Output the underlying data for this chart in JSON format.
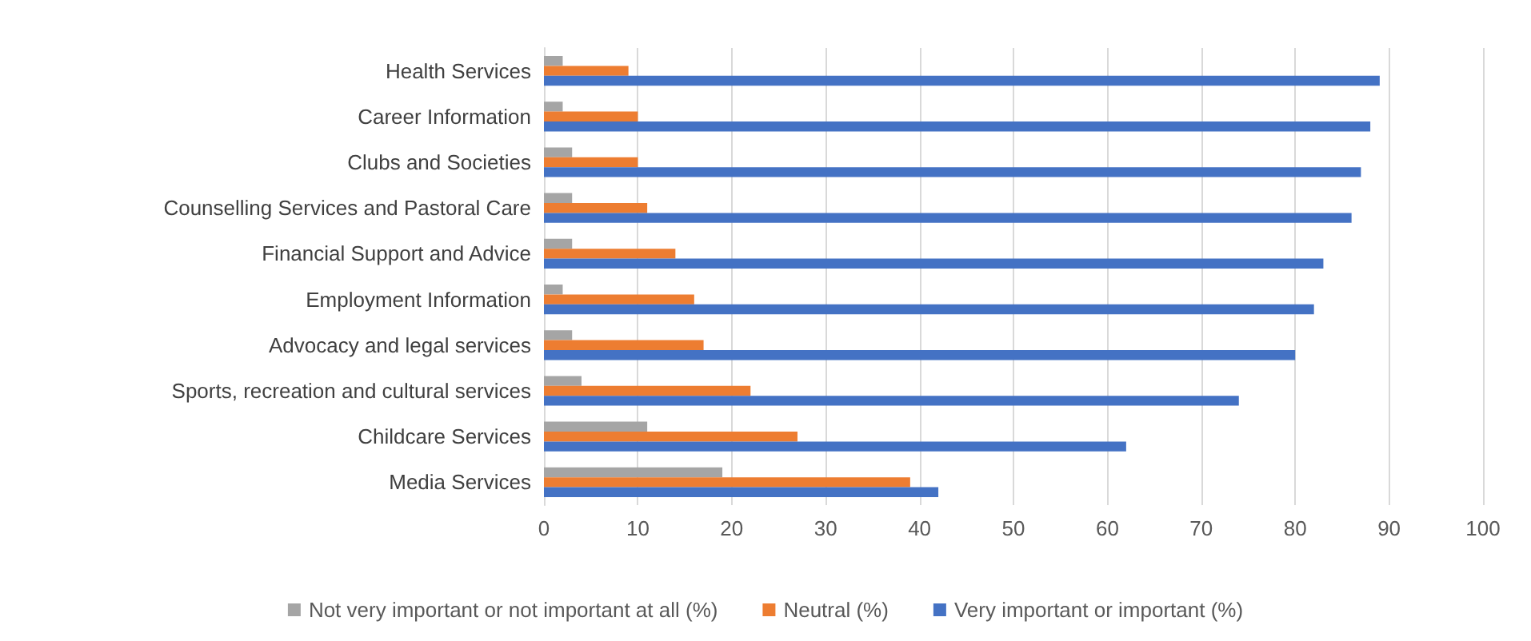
{
  "chart_data": {
    "type": "bar",
    "orientation": "horizontal",
    "categories": [
      "Health Services",
      "Career Information",
      "Clubs and Societies",
      "Counselling Services and Pastoral Care",
      "Financial Support and Advice",
      "Employment Information",
      "Advocacy and legal services",
      "Sports, recreation and cultural services",
      "Childcare Services",
      "Media Services"
    ],
    "series": [
      {
        "name": "Not very important or not important at all (%)",
        "color": "#a5a5a5",
        "values": [
          2,
          2,
          3,
          3,
          3,
          2,
          3,
          4,
          11,
          19
        ]
      },
      {
        "name": "Neutral (%)",
        "color": "#ed7d31",
        "values": [
          9,
          10,
          10,
          11,
          14,
          16,
          17,
          22,
          27,
          39
        ]
      },
      {
        "name": "Very important or important (%)",
        "color": "#4472c4",
        "values": [
          89,
          88,
          87,
          86,
          83,
          82,
          80,
          74,
          62,
          42
        ]
      }
    ],
    "xlim": [
      0,
      100
    ],
    "xticks": [
      0,
      10,
      20,
      30,
      40,
      50,
      60,
      70,
      80,
      90,
      100
    ],
    "grid": "x",
    "legend": "bottom"
  }
}
